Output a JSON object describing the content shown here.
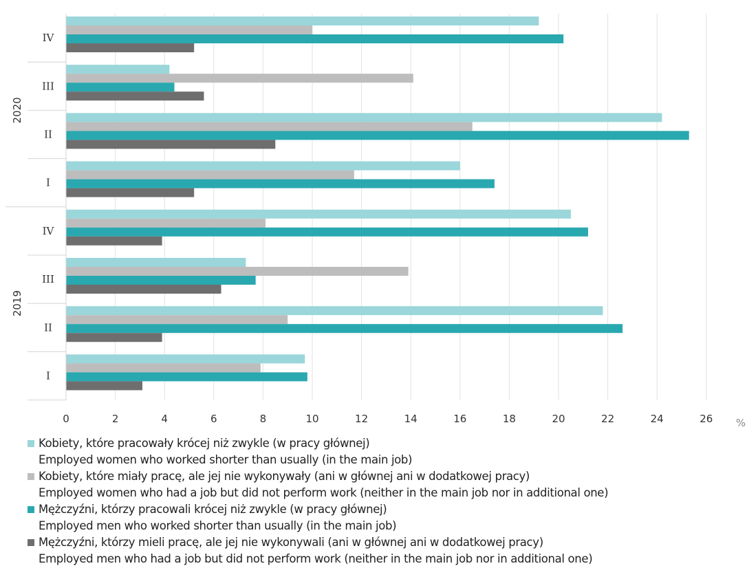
{
  "chart_data": {
    "type": "bar",
    "orientation": "horizontal",
    "unit": "%",
    "xlim": [
      0,
      26
    ],
    "xticks": [
      "0",
      "2",
      "4",
      "6",
      "8",
      "10",
      "12",
      "14",
      "16",
      "18",
      "20",
      "22",
      "24",
      "26"
    ],
    "grid": true,
    "legend_position": "bottom",
    "groups": [
      {
        "year": "2020",
        "quarters": [
          "IV",
          "III",
          "II",
          "I"
        ]
      },
      {
        "year": "2019",
        "quarters": [
          "IV",
          "III",
          "II",
          "I"
        ]
      }
    ],
    "categories": [
      "2020 IV",
      "2020 III",
      "2020 II",
      "2020 I",
      "2019 IV",
      "2019 III",
      "2019 II",
      "2019 I"
    ],
    "series": [
      {
        "name": "Kobiety, które pracowały krócej niż zwykle (w pracy głównej)",
        "name_en": "Employed women who worked shorter than usually (in the main job)",
        "color": "#9ad6da",
        "values": [
          19.2,
          4.2,
          24.2,
          16.0,
          20.5,
          7.3,
          21.8,
          9.7
        ]
      },
      {
        "name": "Kobiety, które miały pracę, ale jej nie wykonywały (ani w głównej ani w dodatkowej pracy)",
        "name_en": "Employed women who had a job but did not perform work (neither in the main job nor in additional one)",
        "color": "#bdbdbd",
        "values": [
          10.0,
          14.1,
          16.5,
          11.7,
          8.1,
          13.9,
          9.0,
          7.9
        ]
      },
      {
        "name": "Mężczyźni, którzy pracowali krócej niż zwykle (w pracy głównej)",
        "name_en": "Employed men who worked shorter than usually (in the main job)",
        "color": "#2aa8b0",
        "values": [
          20.2,
          4.4,
          25.3,
          17.4,
          21.2,
          7.7,
          22.6,
          9.8
        ]
      },
      {
        "name": "Mężczyźni, którzy mieli pracę, ale jej nie wykonywali (ani w głównej ani w dodatkowej pracy)",
        "name_en": "Employed men who had a job but did not perform work (neither in the main job nor in additional one)",
        "color": "#6e6e6e",
        "values": [
          5.2,
          5.6,
          8.5,
          5.2,
          3.9,
          6.3,
          3.9,
          3.1
        ]
      }
    ]
  }
}
